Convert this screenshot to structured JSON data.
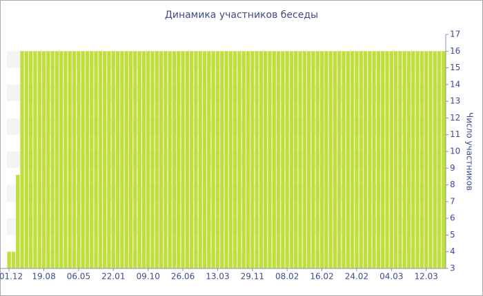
{
  "chart_data": {
    "type": "bar",
    "title": "Динамика участников беседы",
    "y_label": "Число участников",
    "categories": [
      "01.12",
      null,
      null,
      null,
      null,
      null,
      null,
      null,
      "19.08",
      null,
      null,
      null,
      null,
      null,
      null,
      null,
      "06.05",
      null,
      null,
      null,
      null,
      null,
      null,
      null,
      "22.01",
      null,
      null,
      null,
      null,
      null,
      null,
      null,
      "09.10",
      null,
      null,
      null,
      null,
      null,
      null,
      null,
      "26.06",
      null,
      null,
      null,
      null,
      null,
      null,
      null,
      "13.03",
      null,
      null,
      null,
      null,
      null,
      null,
      null,
      "29.11",
      null,
      null,
      null,
      null,
      null,
      null,
      null,
      "08.02",
      null,
      null,
      null,
      null,
      null,
      null,
      null,
      "16.02",
      null,
      null,
      null,
      null,
      null,
      null,
      null,
      "24.02",
      null,
      null,
      null,
      null,
      null,
      null,
      null,
      "04.03",
      null,
      null,
      null,
      null,
      null,
      null,
      null,
      "12.03",
      null,
      null,
      null,
      null
    ],
    "values": [
      4,
      4,
      8.6,
      16,
      16,
      16,
      16,
      16,
      16,
      16,
      16,
      16,
      16,
      16,
      16,
      16,
      16,
      16,
      16,
      16,
      16,
      16,
      16,
      16,
      16,
      16,
      16,
      16,
      16,
      16,
      16,
      16,
      16,
      16,
      16,
      16,
      16,
      16,
      16,
      16,
      16,
      16,
      16,
      16,
      16,
      16,
      16,
      16,
      16,
      16,
      16,
      16,
      16,
      16,
      16,
      16,
      16,
      16,
      16,
      16,
      16,
      16,
      16,
      16,
      16,
      16,
      16,
      16,
      16,
      16,
      16,
      16,
      16,
      16,
      16,
      16,
      16,
      16,
      16,
      16,
      16,
      16,
      16,
      16,
      16,
      16,
      16,
      16,
      16,
      16,
      16,
      16,
      16,
      16,
      16,
      16,
      16,
      16,
      16,
      16,
      16
    ],
    "color": "#bfe03a",
    "ylim": [
      3,
      17
    ],
    "yticks": [
      3,
      4,
      5,
      6,
      7,
      8,
      9,
      10,
      11,
      12,
      13,
      14,
      15,
      16,
      17
    ],
    "grid": true
  }
}
